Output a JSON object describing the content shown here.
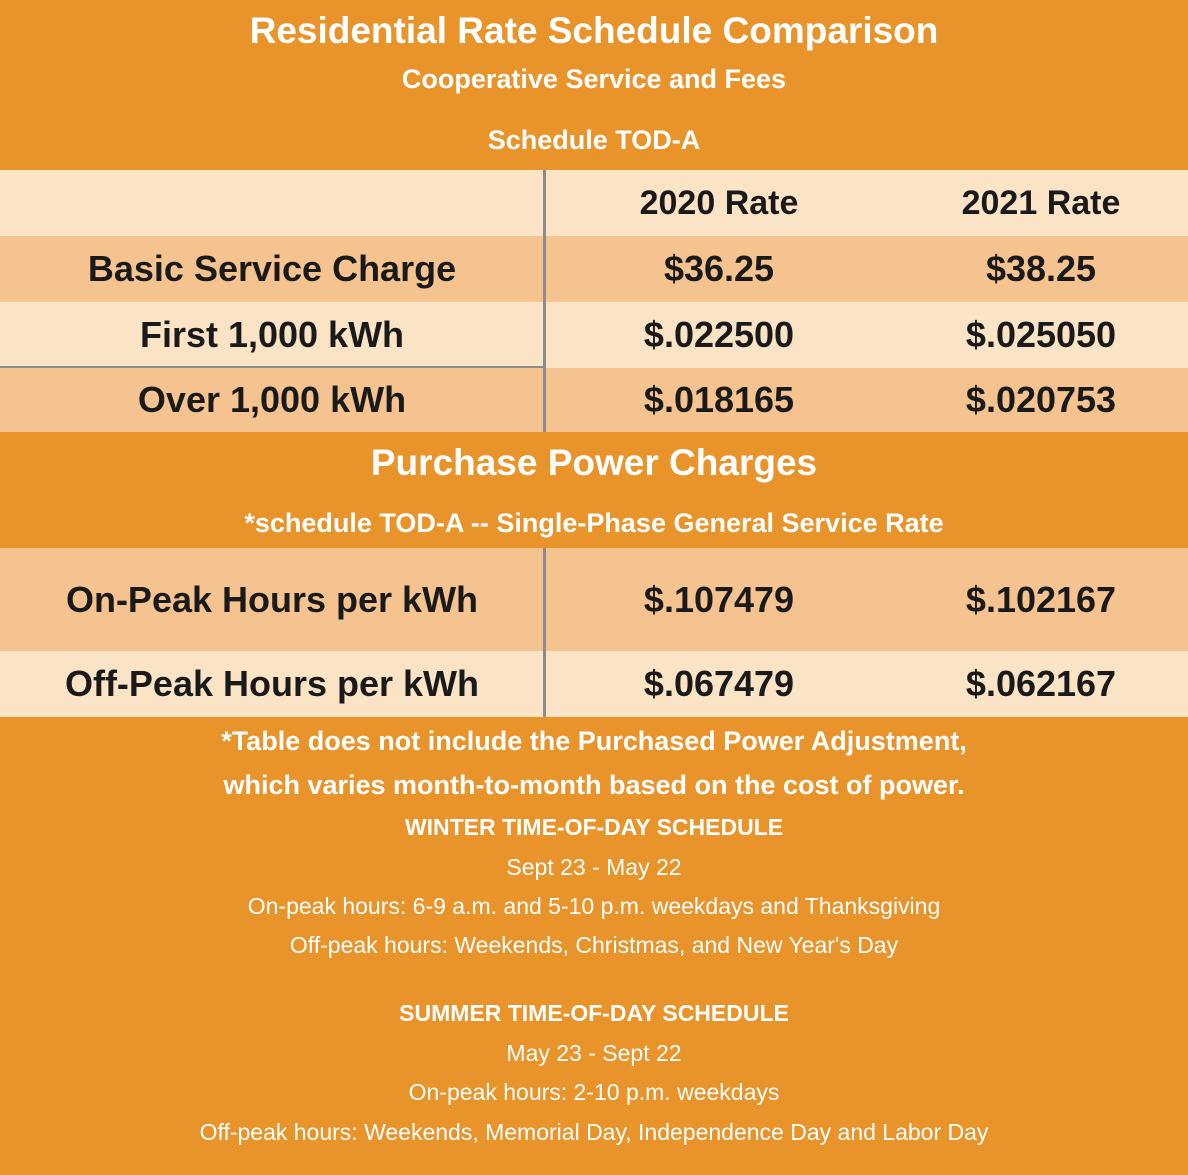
{
  "header": {
    "title": "Residential Rate Schedule Comparison",
    "subtitle": "Cooperative Service and Fees",
    "schedule": "Schedule TOD-A"
  },
  "rates_table": {
    "columns": [
      "",
      "2020 Rate",
      "2021 Rate"
    ],
    "rows": [
      {
        "label": "Basic Service Charge",
        "rate_2020": "$36.25",
        "rate_2021": "$38.25"
      },
      {
        "label": "First 1,000 kWh",
        "rate_2020": "$.022500",
        "rate_2021": "$.025050"
      },
      {
        "label": "Over 1,000 kWh",
        "rate_2020": "$.018165",
        "rate_2021": "$.020753"
      }
    ]
  },
  "purchase_power": {
    "title": "Purchase Power Charges",
    "subtitle": "*schedule TOD-A -- Single-Phase General Service Rate",
    "rows": [
      {
        "label": "On-Peak  Hours per kWh",
        "rate_2020": "$.107479",
        "rate_2021": "$.102167"
      },
      {
        "label": "Off-Peak Hours per kWh",
        "rate_2020": "$.067479",
        "rate_2021": "$.062167"
      }
    ]
  },
  "note": {
    "line1": "*Table does not include the Purchased  Power Adjustment,",
    "line2": "which varies month-to-month based on the cost of power."
  },
  "winter": {
    "heading": "WINTER TIME-OF-DAY SCHEDULE",
    "dates": "Sept 23 - May 22",
    "on_peak": "On-peak hours: 6-9 a.m. and 5-10 p.m.  weekdays and Thanksgiving",
    "off_peak": "Off-peak hours: Weekends, Christmas,  and  New Year's  Day"
  },
  "summer": {
    "heading": "SUMMER TIME-OF-DAY SCHEDULE",
    "dates": "May 23 - Sept 22",
    "on_peak": "On-peak hours: 2-10 p.m.  weekdays",
    "off_peak": "Off-peak hours: Weekends,  Memorial Day, Independence Day and Labor Day"
  }
}
